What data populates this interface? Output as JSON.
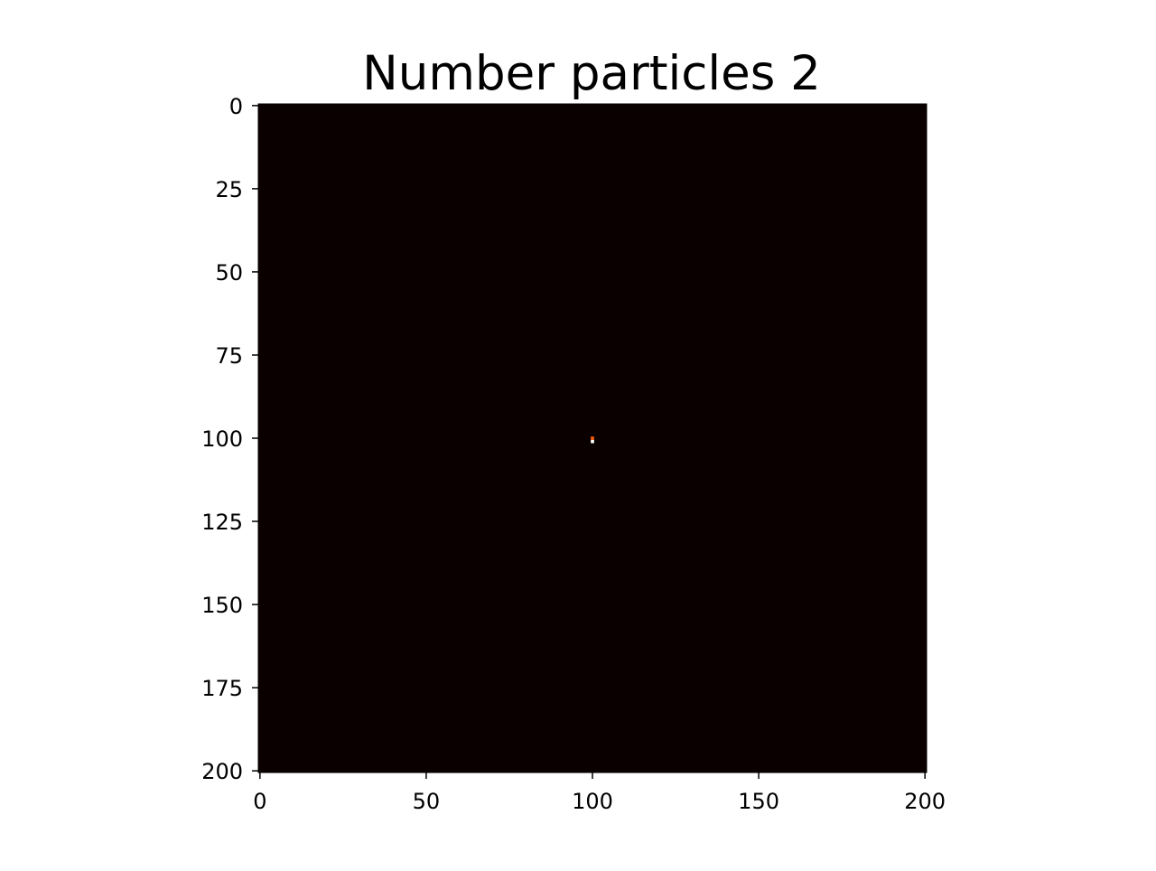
{
  "chart_data": {
    "type": "heatmap",
    "title": "Number particles 2",
    "xlabel": "",
    "ylabel": "",
    "grid_size": [
      201,
      201
    ],
    "xlim": [
      -0.5,
      200.5
    ],
    "ylim": [
      200.5,
      -0.5
    ],
    "y_axis_inverted": true,
    "x_ticks": [
      "0",
      "50",
      "100",
      "150",
      "200"
    ],
    "y_ticks": [
      "0",
      "25",
      "50",
      "75",
      "100",
      "125",
      "150",
      "175",
      "200"
    ],
    "background_value": 0,
    "colormap": "hot",
    "colors": {
      "background": "#0b0000",
      "low_hot": "#ff5a00",
      "high_hot": "#ffffff"
    },
    "hot_cells": [
      {
        "x": 100,
        "y": 100,
        "color": "#ff5a00"
      },
      {
        "x": 100,
        "y": 101,
        "color": "#ffffff"
      }
    ],
    "grid": false,
    "legend": "none"
  }
}
